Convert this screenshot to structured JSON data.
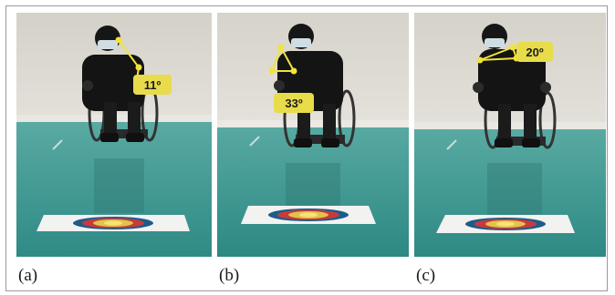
{
  "panels": [
    {
      "caption": "(a)",
      "angle_label": "11º"
    },
    {
      "caption": "(b)",
      "angle_label": "33º"
    },
    {
      "caption": "(c)",
      "angle_label": "20º"
    }
  ],
  "colors": {
    "wall": "#d9d6cf",
    "floor": "#3e9c95",
    "annotation": "#f2e33c",
    "annotation_box": "#e8dc4a"
  }
}
